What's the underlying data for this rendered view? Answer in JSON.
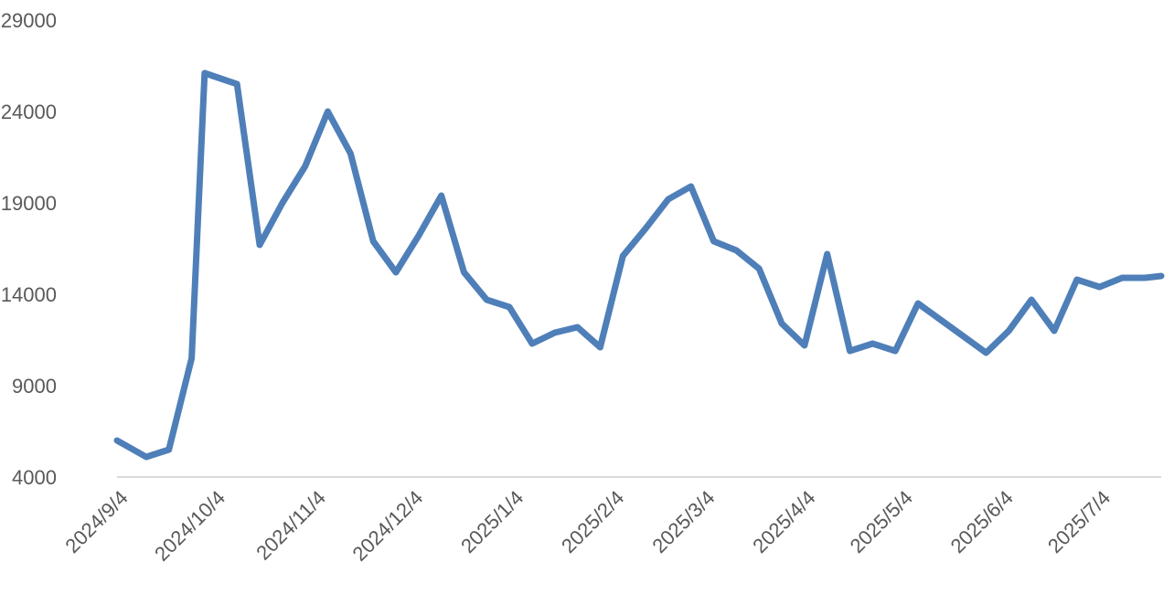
{
  "chart_data": {
    "type": "line",
    "title": "",
    "xlabel": "",
    "ylabel": "",
    "series_color": "#4f7fb8",
    "axis_color": "#d9d9d9",
    "text_color": "#595959",
    "x_ticks": [
      "2024/9/4",
      "2024/10/4",
      "2024/11/4",
      "2024/12/4",
      "2025/1/4",
      "2025/2/4",
      "2025/3/4",
      "2025/4/4",
      "2025/5/4",
      "2025/6/4",
      "2025/7/4"
    ],
    "y_ticks": [
      "4000",
      "9000",
      "14000",
      "19000",
      "24000",
      "29000"
    ],
    "xlim": [
      "2024/9/2",
      "2025/7/21"
    ],
    "ylim": [
      4000,
      29000
    ],
    "grid": false,
    "legend": "none",
    "series": [
      {
        "x": [
          "2024/9/2",
          "2024/9/4",
          "2024/9/11",
          "2024/9/18",
          "2024/9/25",
          "2024/9/29",
          "2024/10/4",
          "2024/10/9",
          "2024/10/16",
          "2024/10/23",
          "2024/10/30",
          "2024/11/6",
          "2024/11/13",
          "2024/11/20",
          "2024/11/27",
          "2024/12/4",
          "2024/12/11",
          "2024/12/18",
          "2024/12/25",
          "2025/1/1",
          "2025/1/8",
          "2025/1/15",
          "2025/1/22",
          "2025/1/29",
          "2025/2/5",
          "2025/2/12",
          "2025/2/19",
          "2025/2/26",
          "2025/3/5",
          "2025/3/12",
          "2025/3/19",
          "2025/3/26",
          "2025/4/2",
          "2025/4/9",
          "2025/4/16",
          "2025/4/23",
          "2025/4/30",
          "2025/5/7",
          "2025/5/14",
          "2025/5/21",
          "2025/5/28",
          "2025/6/4",
          "2025/6/11",
          "2025/6/18",
          "2025/6/25",
          "2025/7/2",
          "2025/7/9",
          "2025/7/16",
          "2025/7/21"
        ],
        "values": [
          6000,
          5800,
          5100,
          5500,
          10500,
          26100,
          25800,
          25500,
          16700,
          19000,
          21000,
          24000,
          21700,
          16900,
          15200,
          17200,
          19400,
          15200,
          13700,
          13300,
          11300,
          11900,
          12200,
          11100,
          16100,
          17600,
          19200,
          19900,
          16900,
          16400,
          15400,
          12400,
          11200,
          16200,
          10900,
          11300,
          10900,
          13500,
          12600,
          11700,
          10800,
          12000,
          13700,
          12000,
          14800,
          14400,
          14900,
          14900,
          15000
        ]
      }
    ]
  }
}
